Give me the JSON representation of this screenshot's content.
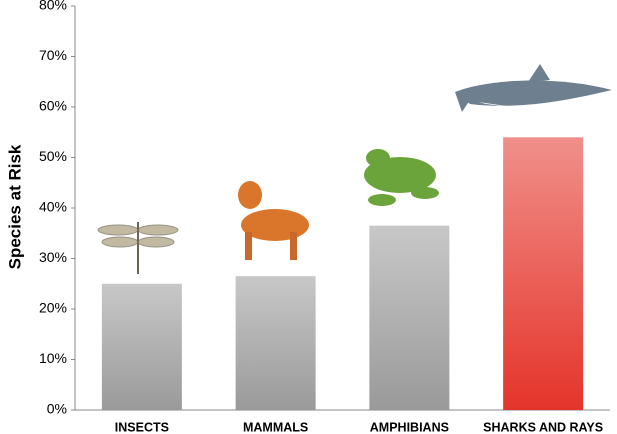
{
  "chart_data": {
    "type": "bar",
    "y_label": "Species at Risk",
    "categories": [
      "INSECTS",
      "MAMMALS",
      "AMPHIBIANS",
      "SHARKS AND RAYS"
    ],
    "values": [
      25,
      26.5,
      36.5,
      54
    ],
    "colors": [
      "#9a9a9a",
      "#9a9a9a",
      "#9a9a9a",
      "#e4342a"
    ],
    "ylim": [
      0,
      80
    ],
    "yticks": [
      {
        "value": 0,
        "label": "0%"
      },
      {
        "value": 10,
        "label": "10%"
      },
      {
        "value": 20,
        "label": "20%"
      },
      {
        "value": 30,
        "label": "30%"
      },
      {
        "value": 40,
        "label": "40%"
      },
      {
        "value": 50,
        "label": "50%"
      },
      {
        "value": 60,
        "label": "60%"
      },
      {
        "value": 70,
        "label": "70%"
      },
      {
        "value": 80,
        "label": "80%"
      }
    ],
    "grid": false
  }
}
